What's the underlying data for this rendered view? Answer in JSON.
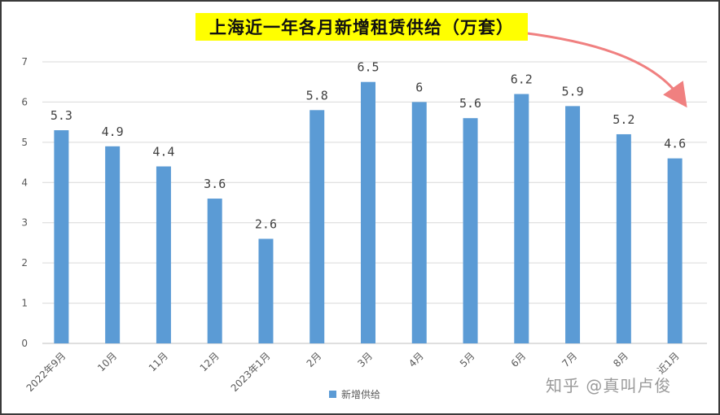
{
  "title": "上海近一年各月新增租赁供给（万套）",
  "watermark": "知乎 @真叫卢俊",
  "colors": {
    "bar": "#5b9bd5",
    "title_bg": "#ffff00",
    "arrow": "#f08080"
  },
  "chart_data": {
    "type": "bar",
    "categories": [
      "2022年9月",
      "10月",
      "11月",
      "12月",
      "2023年1月",
      "2月",
      "3月",
      "4月",
      "5月",
      "6月",
      "7月",
      "8月",
      "近1月"
    ],
    "series": [
      {
        "name": "新增供给",
        "values": [
          5.3,
          4.9,
          4.4,
          3.6,
          2.6,
          5.8,
          6.5,
          6,
          5.6,
          6.2,
          5.9,
          5.2,
          4.6
        ]
      }
    ],
    "data_labels": [
      "5.3",
      "4.9",
      "4.4",
      "3.6",
      "2.6",
      "5.8",
      "6.5",
      "6",
      "5.6",
      "6.2",
      "5.9",
      "5.2",
      "4.6"
    ],
    "ylim": [
      0,
      7
    ],
    "yticks": [
      "0",
      "1",
      "2",
      "3",
      "4",
      "5",
      "6",
      "7"
    ],
    "grid": true,
    "legend": "bottom",
    "annotation": "downward arrow toward last bar"
  }
}
